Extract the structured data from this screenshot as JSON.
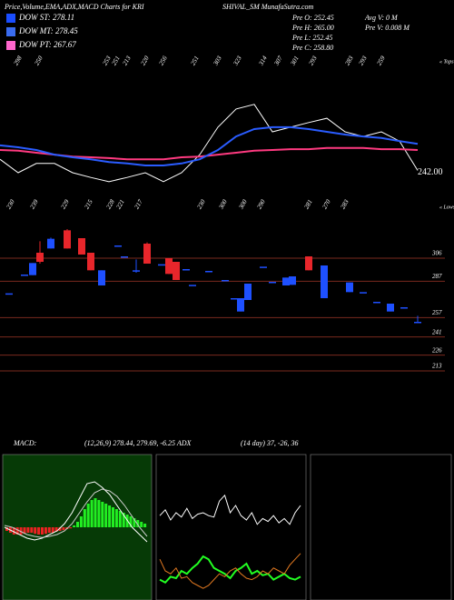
{
  "header": {
    "left": "Price,Volume,EMA,ADX,MACD Charts for KRI",
    "center": "SHIVAL_SM MunafaSutra.com"
  },
  "legend": [
    {
      "label": "DOW ST: 278.11",
      "color": "#1a4dff"
    },
    {
      "label": "DOW MT: 278.45",
      "color": "#3a6cf0"
    },
    {
      "label": "DOW PT: 267.67",
      "color": "#ff66cc"
    }
  ],
  "prev": [
    "Pre  O: 252.45",
    "Pre  H: 265.00",
    "Pre  L: 252.45",
    "Pre  C: 258.80"
  ],
  "volume": [
    "Avg V: 0  M",
    "Pre  V: 0.008  M"
  ],
  "chart_data": [
    {
      "type": "line",
      "ylim": [
        232,
        272
      ],
      "last_label": "242.00",
      "tops_label": "« Tops",
      "lows_label": "« Lows",
      "tops": [
        298,
        250,
        253,
        251,
        213,
        220,
        256,
        251,
        303,
        323,
        314,
        307,
        301,
        293,
        283,
        293,
        259
      ],
      "lows": [
        230,
        239,
        229,
        215,
        228,
        221,
        217,
        230,
        300,
        300,
        290,
        281,
        270,
        283
      ],
      "series": [
        {
          "color": "#ffffff",
          "values": [
            244.9,
            241.4,
            243.8,
            243.8,
            241.4,
            240.2,
            239.1,
            240.2,
            241.4,
            239.1,
            241.4,
            246.1,
            253.2,
            257.9,
            259.1,
            252.0,
            253.2,
            254.4,
            255.5,
            252.0,
            250.8,
            252.0,
            249.6,
            242.0
          ]
        },
        {
          "color": "#ff3a80",
          "values": [
            247.3,
            247.1,
            246.6,
            246.1,
            245.6,
            245.4,
            245.2,
            244.9,
            244.9,
            244.9,
            245.4,
            245.6,
            246.1,
            246.6,
            247.1,
            247.3,
            247.5,
            247.5,
            247.8,
            247.8,
            247.8,
            247.5,
            247.5,
            247.3
          ]
        },
        {
          "color": "#2a5cff",
          "values": [
            248.5,
            248.0,
            247.3,
            246.1,
            245.4,
            244.9,
            244.2,
            243.8,
            243.3,
            243.3,
            243.8,
            244.9,
            247.3,
            250.8,
            252.7,
            253.2,
            253.2,
            252.7,
            252.0,
            251.3,
            250.8,
            250.4,
            249.6,
            248.9
          ]
        }
      ]
    },
    {
      "type": "candlestick",
      "ylim": [
        204,
        331.5
      ],
      "yticks": [
        306,
        287,
        257,
        241,
        226,
        213
      ],
      "up_color": "#1e50ff",
      "down_color": "#e8262b",
      "level_color": "#7a2a1e",
      "open": [
        277,
        292.5,
        292,
        310.5,
        314,
        329,
        322.5,
        310.5,
        283.5,
        316.5,
        307.5,
        296,
        318,
        301,
        306,
        303,
        297,
        284,
        295.5,
        288,
        273,
        262,
        271.5,
        299,
        286.5,
        283.5,
        284,
        307.5,
        273,
        278,
        278,
        270,
        262,
        265.5,
        253.5
      ],
      "high": [
        277,
        292.5,
        302,
        320,
        323,
        330,
        322.5,
        310.5,
        296,
        316.5,
        307.5,
        305,
        319,
        301,
        306,
        303,
        297,
        284,
        295.5,
        288,
        273,
        273,
        285,
        299,
        286.5,
        290,
        291,
        307.5,
        300,
        286,
        278,
        270,
        268.5,
        265.5,
        258.5
      ],
      "low": [
        277,
        292.5,
        292,
        301.5,
        314,
        314,
        309,
        296,
        283.5,
        316.5,
        307.5,
        294,
        301.5,
        301,
        293,
        288,
        297,
        284,
        295.5,
        288,
        273,
        262,
        271.5,
        299,
        286.5,
        283.5,
        284,
        296,
        273,
        278,
        278,
        270,
        262,
        265.5,
        252.5
      ],
      "close": [
        277,
        292.5,
        302,
        303,
        322,
        314,
        309,
        296,
        296,
        316.5,
        307.5,
        296,
        301.5,
        301,
        293,
        288,
        297,
        284,
        295.5,
        288,
        273,
        273,
        285,
        299,
        286.5,
        290,
        291,
        296,
        300,
        286,
        278,
        270,
        268.5,
        265.5,
        253.5
      ]
    },
    {
      "type": "macd",
      "title": "MACD:",
      "subtitle": "(12,26,9) 278.44, 279.69, -6.25 ADX",
      "ylim": [
        -20,
        20
      ],
      "pos_color": "#22ee22",
      "neg_color": "#ee2222",
      "histogram": [
        -1,
        -1.5,
        -2,
        -2,
        -2,
        -1.8,
        -1.5,
        -1.5,
        -1.8,
        -2,
        -2,
        -1.8,
        -1.5,
        -1.5,
        -1.2,
        -1,
        -0.8,
        -0.5,
        -0.3,
        0.5,
        1.5,
        3,
        5,
        6.5,
        7.5,
        8,
        7.5,
        7,
        6.5,
        6,
        5.5,
        5,
        4.5,
        4,
        3.5,
        3,
        2.5,
        2,
        1.5,
        1
      ],
      "series": [
        {
          "color": "#ffffff",
          "values": [
            0,
            -1,
            -2,
            -3,
            -3.5,
            -3,
            -2,
            -1,
            1,
            4,
            8,
            12,
            12.5,
            11,
            9,
            6,
            3,
            0,
            -2,
            -4
          ]
        },
        {
          "color": "#cccccc",
          "values": [
            0.5,
            0,
            -1,
            -2,
            -2.5,
            -2.8,
            -2.5,
            -2,
            -1,
            1,
            4,
            7,
            9.5,
            10.5,
            10,
            8.5,
            6,
            3,
            0,
            -2.5
          ]
        }
      ]
    },
    {
      "type": "adx",
      "title": "(14 day) 37, -26, 36",
      "ylim": [
        0,
        100
      ],
      "series": [
        {
          "color": "#ffffff",
          "values": [
            58,
            62,
            55,
            60,
            57,
            63,
            56,
            59,
            60,
            58,
            57,
            68,
            72,
            60,
            65,
            58,
            55,
            60,
            52,
            56,
            54,
            58,
            53,
            56,
            52,
            60,
            65
          ]
        },
        {
          "color": "#22ff22",
          "values": [
            14,
            12,
            16,
            15,
            20,
            18,
            22,
            25,
            30,
            28,
            22,
            20,
            18,
            15,
            20,
            22,
            25,
            18,
            20,
            17,
            18,
            14,
            16,
            18,
            15,
            14,
            16
          ]
        },
        {
          "color": "#e07820",
          "values": [
            28,
            20,
            18,
            22,
            15,
            16,
            12,
            10,
            8,
            10,
            14,
            18,
            16,
            20,
            22,
            18,
            15,
            14,
            16,
            20,
            18,
            22,
            20,
            18,
            24,
            28,
            32
          ]
        }
      ]
    }
  ]
}
